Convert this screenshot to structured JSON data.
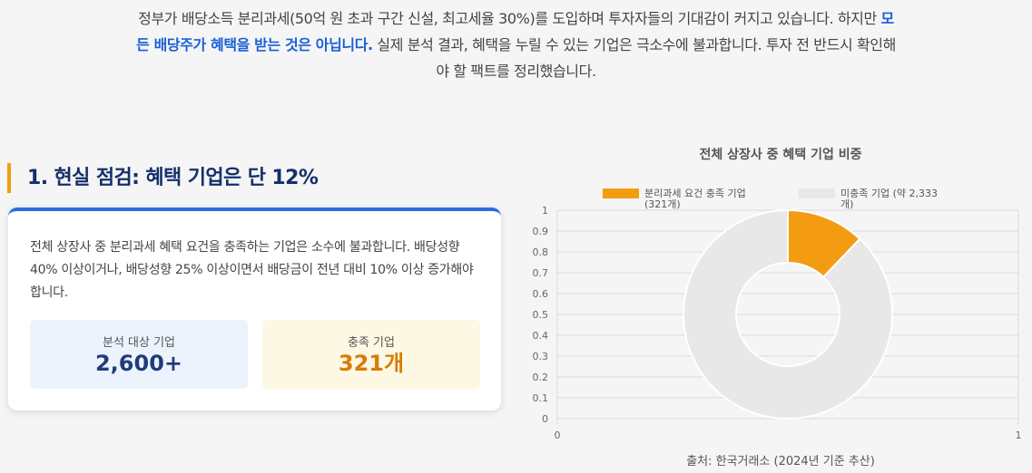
{
  "intro": {
    "part1": "정부가 배당소득 분리과세(50억 원 초과 구간 신설, 최고세율 30%)를 도입하며 투자자들의 기대감이 커지고 있습니다. 하지만 ",
    "highlight": "모든 배당주가 혜택을 받는 것은 아닙니다.",
    "part2": " 실제 분석 결과, 혜택을 누릴 수 있는 기업은 극소수에 불과합니다. 투자 전 반드시 확인해야 할 팩트를 정리했습니다."
  },
  "section": {
    "title": "1. 현실 점검: 혜택 기업은 단 12%"
  },
  "card": {
    "text": "전체 상장사 중 분리과세 혜택 요건을 충족하는 기업은 소수에 불과합니다. 배당성향 40% 이상이거나, 배당성향 25% 이상이면서 배당금이 전년 대비 10% 이상 증가해야 합니다.",
    "stats": [
      {
        "label": "분석 대상 기업",
        "value": "2,600+"
      },
      {
        "label": "충족 기업",
        "value": "321개"
      }
    ]
  },
  "chart": {
    "title": "전체 상장사 중 혜택 기업 비중",
    "source": "출처: 한국거래소 (2024년 기준 추산)"
  },
  "chart_data": {
    "type": "pie",
    "variant": "doughnut",
    "labels": [
      "분리과세 요건 충족 기업 (321개)",
      "미충족 기업 (약 2,333개)"
    ],
    "values": [
      321,
      2333
    ],
    "colors": [
      "#f39c12",
      "#e8e8e8"
    ],
    "legend_position": "top",
    "y_ticks": [
      "1",
      "0.9",
      "0.8",
      "0.7",
      "0.6",
      "0.5",
      "0.4",
      "0.3",
      "0.2",
      "0.1",
      "0"
    ],
    "x_ticks": [
      "0",
      "1"
    ],
    "grid": true
  }
}
